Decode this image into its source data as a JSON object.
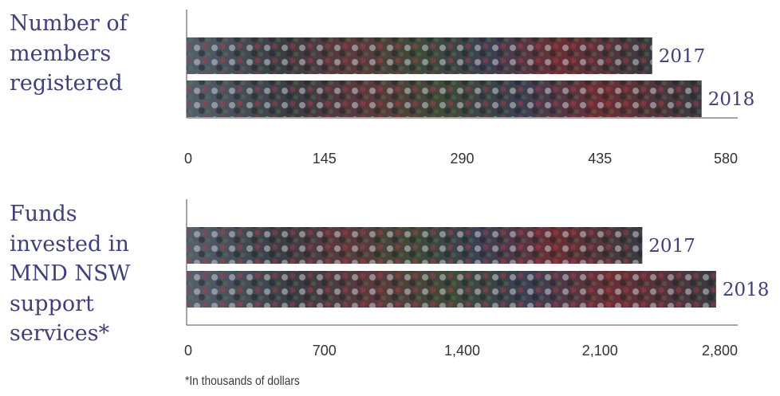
{
  "chart_data": [
    {
      "type": "bar",
      "orientation": "horizontal",
      "title": "Number of\nmembers\nregistered",
      "categories": [
        "2017",
        "2018"
      ],
      "values": [
        490,
        542
      ],
      "xlim": [
        0,
        580
      ],
      "xticks": [
        "0",
        "145",
        "290",
        "435",
        "580"
      ],
      "grid": false
    },
    {
      "type": "bar",
      "orientation": "horizontal",
      "title": "Funds\ninvested in\nMND NSW\nsupport\nservices*",
      "categories": [
        "2017",
        "2018"
      ],
      "values": [
        2315,
        2690
      ],
      "xlim": [
        0,
        2800
      ],
      "xticks": [
        "0",
        "700",
        "1,400",
        "2,100",
        "2,800"
      ],
      "grid": false
    }
  ],
  "footnote": "*In thousands of dollars",
  "colors": {
    "label": "#3f3f79",
    "axis": "#888888"
  }
}
